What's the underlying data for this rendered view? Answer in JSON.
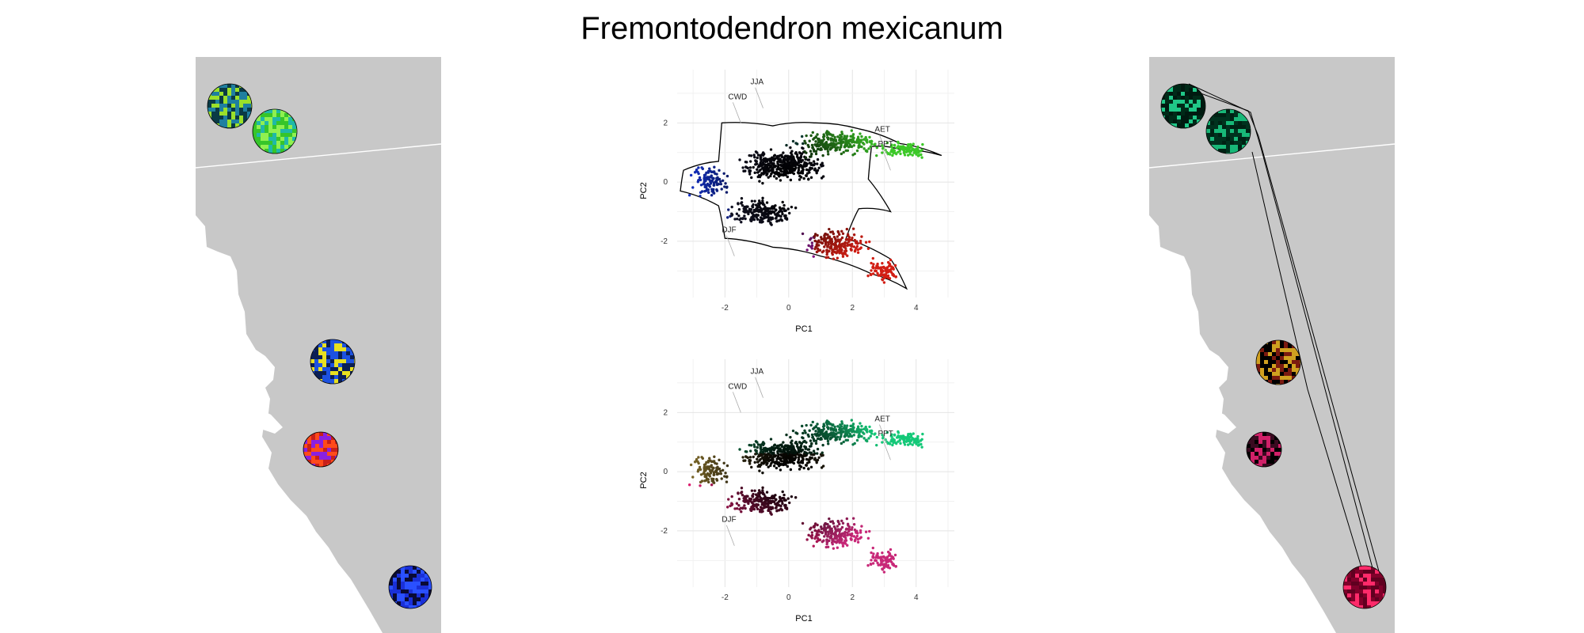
{
  "title": "Fremontodendron mexicanum",
  "chart_data": [
    {
      "type": "scatter",
      "panel": "pca-top",
      "title": "",
      "xlabel": "PC1",
      "ylabel": "PC2",
      "xlim": [
        -3.5,
        5.2
      ],
      "ylim": [
        -3.9,
        3.8
      ],
      "xticks": [
        -2,
        0,
        2,
        4
      ],
      "yticks": [
        -2,
        0,
        2
      ],
      "grid": true,
      "hull": true,
      "loadings": [
        {
          "name": "JJA",
          "x": -1.2,
          "y": 3.3
        },
        {
          "name": "CWD",
          "x": -1.9,
          "y": 2.8
        },
        {
          "name": "AET",
          "x": 2.7,
          "y": 1.7
        },
        {
          "name": "PPT",
          "x": 2.8,
          "y": 1.2
        },
        {
          "name": "DJF",
          "x": -2.1,
          "y": -1.7
        }
      ],
      "hull_points": [
        [
          -2.1,
          2.0
        ],
        [
          -0.5,
          1.9
        ],
        [
          0.8,
          2.0
        ],
        [
          2.2,
          1.8
        ],
        [
          3.5,
          1.3
        ],
        [
          4.8,
          0.9
        ],
        [
          3.5,
          1.1
        ],
        [
          2.6,
          1.2
        ],
        [
          2.5,
          0.1
        ],
        [
          3.2,
          -1.0
        ],
        [
          2.2,
          -0.9
        ],
        [
          1.8,
          -1.9
        ],
        [
          3.2,
          -2.6
        ],
        [
          3.7,
          -3.6
        ],
        [
          2.6,
          -3.1
        ],
        [
          1.0,
          -2.5
        ],
        [
          -0.5,
          -2.2
        ],
        [
          -2.0,
          -1.9
        ],
        [
          -2.2,
          -0.8
        ],
        [
          -3.4,
          -0.3
        ],
        [
          -3.3,
          0.4
        ],
        [
          -2.2,
          0.7
        ]
      ]
    },
    {
      "type": "scatter",
      "panel": "pca-bottom",
      "title": "",
      "xlabel": "PC1",
      "ylabel": "PC2",
      "xlim": [
        -3.5,
        5.2
      ],
      "ylim": [
        -3.9,
        3.8
      ],
      "xticks": [
        -2,
        0,
        2,
        4
      ],
      "yticks": [
        -2,
        0,
        2
      ],
      "grid": true,
      "hull": false,
      "loadings": [
        {
          "name": "JJA",
          "x": -1.2,
          "y": 3.3
        },
        {
          "name": "CWD",
          "x": -1.9,
          "y": 2.8
        },
        {
          "name": "AET",
          "x": 2.7,
          "y": 1.7
        },
        {
          "name": "PPT",
          "x": 2.8,
          "y": 1.2
        },
        {
          "name": "DJF",
          "x": -2.1,
          "y": -1.7
        }
      ]
    }
  ],
  "maps": {
    "left_sites": [
      {
        "name": "site-1",
        "colors": [
          "#0a3a45",
          "#1f7fa0",
          "#9be02a"
        ]
      },
      {
        "name": "site-2",
        "colors": [
          "#36c52a",
          "#90f050",
          "#20b8a8"
        ]
      },
      {
        "name": "site-3",
        "colors": [
          "#0b1f55",
          "#1d52e0",
          "#e8e020"
        ]
      },
      {
        "name": "site-4",
        "colors": [
          "#c8201a",
          "#ff4a1a",
          "#8a20e0"
        ]
      },
      {
        "name": "site-5",
        "colors": [
          "#0a0a35",
          "#1a30d8",
          "#2a50ff"
        ]
      }
    ],
    "right_sites": [
      {
        "name": "site-1",
        "colors": [
          "#002a18",
          "#20c888",
          "#001a10"
        ]
      },
      {
        "name": "site-2",
        "colors": [
          "#00321e",
          "#18b878",
          "#002214"
        ]
      },
      {
        "name": "site-3",
        "colors": [
          "#000000",
          "#7a1a10",
          "#d0a020"
        ]
      },
      {
        "name": "site-4",
        "colors": [
          "#000000",
          "#3a0a20",
          "#d02068"
        ]
      },
      {
        "name": "site-5",
        "colors": [
          "#80002a",
          "#ff2a6a",
          "#600020"
        ]
      }
    ],
    "land_color": "#c8c8c8"
  }
}
